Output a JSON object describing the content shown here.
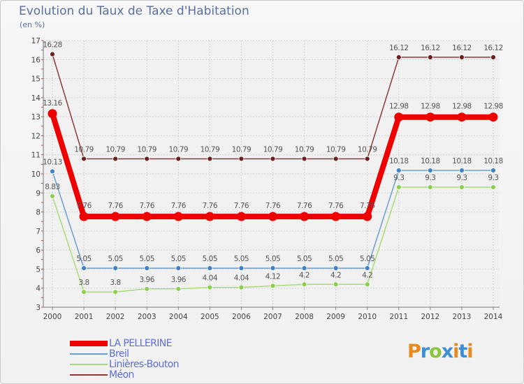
{
  "title": "Evolution du Taux de Taxe d'Habitation",
  "unit_label": "(en %)",
  "logo": {
    "text": "Proxiti",
    "colors": [
      "#e8891a",
      "#3b8fd8",
      "#8cc63f",
      "#3b8fd8",
      "#e8891a",
      "#3b8fd8",
      "#e8891a"
    ]
  },
  "chart_data": {
    "type": "line",
    "x": [
      "2000",
      "2001",
      "2002",
      "2003",
      "2004",
      "2005",
      "2006",
      "2007",
      "2008",
      "2009",
      "2010",
      "2011",
      "2012",
      "2013",
      "2014"
    ],
    "ylim": [
      3,
      17
    ],
    "yticks": [
      3,
      4,
      5,
      6,
      7,
      8,
      9,
      10,
      11,
      12,
      13,
      14,
      15,
      16,
      17
    ],
    "grid": true,
    "series": [
      {
        "name": "Méon",
        "color": "#8a3a3a",
        "marker": "#6b1f1f",
        "width": 1.5,
        "values": [
          16.28,
          10.79,
          10.79,
          10.79,
          10.79,
          10.79,
          10.79,
          10.79,
          10.79,
          10.79,
          10.79,
          16.12,
          16.12,
          16.12,
          16.12
        ],
        "labels": [
          "16.28",
          "10.79",
          "10.79",
          "10.79",
          "10.79",
          "10.79",
          "10.79",
          "10.79",
          "10.79",
          "10.79",
          "10.79",
          "16.12",
          "16.12",
          "16.12",
          "16.12"
        ]
      },
      {
        "name": "Breil",
        "color": "#6a9fd0",
        "marker": "#3f82c8",
        "width": 1.5,
        "values": [
          10.13,
          5.05,
          5.05,
          5.05,
          5.05,
          5.05,
          5.05,
          5.05,
          5.05,
          5.05,
          5.05,
          10.18,
          10.18,
          10.18,
          10.18
        ],
        "labels": [
          "10.13",
          "5.05",
          "5.05",
          "5.05",
          "5.05",
          "5.05",
          "5.05",
          "5.05",
          "5.05",
          "5.05",
          "5.05",
          "10.18",
          "10.18",
          "10.18",
          "10.18"
        ]
      },
      {
        "name": "Linières-Bouton",
        "color": "#a8dc78",
        "marker": "#8ccf4f",
        "width": 1.5,
        "values": [
          8.83,
          3.8,
          3.8,
          3.96,
          3.96,
          4.04,
          4.04,
          4.12,
          4.2,
          4.2,
          4.2,
          9.3,
          9.3,
          9.3,
          9.3
        ],
        "labels": [
          "8.83",
          "3.8",
          "3.8",
          "3.96",
          "3.96",
          "4.04",
          "4.04",
          "4.12",
          "4.2",
          "4.2",
          "4.2",
          "9.3",
          "9.3",
          "9.3",
          "9.3"
        ]
      },
      {
        "name": "LA PELLERINE",
        "color": "#ee0000",
        "marker": "#ee0000",
        "width": 8,
        "values": [
          13.16,
          7.76,
          7.76,
          7.76,
          7.76,
          7.76,
          7.76,
          7.76,
          7.76,
          7.76,
          7.76,
          12.98,
          12.98,
          12.98,
          12.98
        ],
        "labels": [
          "13.16",
          "7.76",
          "7.76",
          "7.76",
          "7.76",
          "7.76",
          "7.76",
          "7.76",
          "7.76",
          "7.76",
          "7.76",
          "12.98",
          "12.98",
          "12.98",
          "12.98"
        ]
      }
    ],
    "legend": [
      {
        "name": "LA PELLERINE",
        "color": "#ee0000",
        "thickness": 8
      },
      {
        "name": "Breil",
        "color": "#6a9fd0",
        "thickness": 2
      },
      {
        "name": "Linières-Bouton",
        "color": "#a8dc78",
        "thickness": 2
      },
      {
        "name": "Méon",
        "color": "#8a3a3a",
        "thickness": 2
      }
    ]
  }
}
